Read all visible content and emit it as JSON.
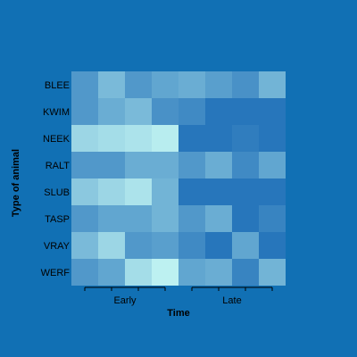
{
  "chart_data": {
    "type": "heatmap",
    "title": "",
    "xlabel": "Time",
    "ylabel": "Type of animal",
    "rows": [
      "BLEE",
      "KWIM",
      "NEEK",
      "RALT",
      "SLUB",
      "TASP",
      "VRAY",
      "WERF"
    ],
    "column_groups": [
      {
        "label": "Early",
        "columns": 4
      },
      {
        "label": "Late",
        "columns": 4
      }
    ],
    "value_range": [
      0,
      1
    ],
    "colors": {
      "background": "#1170b4",
      "low": "#1f6fb8",
      "high": "#c5f8f4",
      "axis": "#000000"
    },
    "values": [
      [
        0.3,
        0.55,
        0.3,
        0.4,
        0.45,
        0.35,
        0.25,
        0.5
      ],
      [
        0.3,
        0.45,
        0.55,
        0.25,
        0.2,
        0.05,
        0.05,
        0.05
      ],
      [
        0.75,
        0.8,
        0.85,
        0.92,
        0.05,
        0.05,
        0.1,
        0.05
      ],
      [
        0.3,
        0.3,
        0.45,
        0.45,
        0.3,
        0.45,
        0.2,
        0.4
      ],
      [
        0.65,
        0.75,
        0.85,
        0.5,
        0.05,
        0.05,
        0.05,
        0.05
      ],
      [
        0.3,
        0.4,
        0.4,
        0.5,
        0.3,
        0.45,
        0.05,
        0.15
      ],
      [
        0.55,
        0.75,
        0.3,
        0.35,
        0.2,
        0.05,
        0.4,
        0.05
      ],
      [
        0.3,
        0.4,
        0.8,
        0.95,
        0.4,
        0.45,
        0.15,
        0.5
      ]
    ]
  }
}
